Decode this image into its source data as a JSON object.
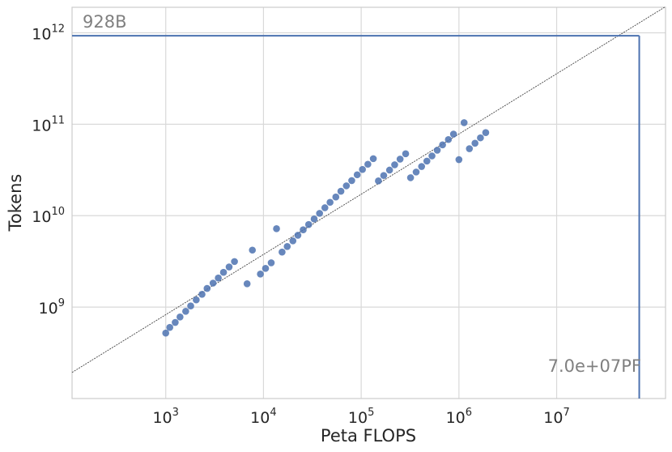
{
  "chart_data": {
    "type": "scatter",
    "xlabel": "Peta FLOPS",
    "ylabel": "Tokens",
    "xscale": "log",
    "yscale": "log",
    "xlim": [
      110,
      130000000.0
    ],
    "ylim": [
      100000000.0,
      1900000000000.0
    ],
    "grid": true,
    "x_ticks": [
      {
        "base": "10",
        "exp": "3",
        "value": 1000
      },
      {
        "base": "10",
        "exp": "4",
        "value": 10000
      },
      {
        "base": "10",
        "exp": "5",
        "value": 100000
      },
      {
        "base": "10",
        "exp": "6",
        "value": 1000000
      },
      {
        "base": "10",
        "exp": "7",
        "value": 10000000
      }
    ],
    "y_ticks": [
      {
        "base": "10",
        "exp": "9",
        "value": 1000000000
      },
      {
        "base": "10",
        "exp": "10",
        "value": 10000000000
      },
      {
        "base": "10",
        "exp": "11",
        "value": 100000000000
      },
      {
        "base": "10",
        "exp": "12",
        "value": 1000000000000
      }
    ],
    "point_color": "#4c72b0",
    "line_color": "#4c72b0",
    "points": [
      [
        1000,
        520000000.0
      ],
      [
        1100,
        600000000.0
      ],
      [
        1250,
        680000000.0
      ],
      [
        1400,
        780000000.0
      ],
      [
        1600,
        900000000.0
      ],
      [
        1800,
        1030000000.0
      ],
      [
        2050,
        1200000000.0
      ],
      [
        2350,
        1380000000.0
      ],
      [
        2650,
        1600000000.0
      ],
      [
        3050,
        1830000000.0
      ],
      [
        3450,
        2080000000.0
      ],
      [
        3900,
        2400000000.0
      ],
      [
        4450,
        2750000000.0
      ],
      [
        5050,
        3150000000.0
      ],
      [
        6800,
        1800000000.0
      ],
      [
        7700,
        4200000000.0
      ],
      [
        9300,
        2300000000.0
      ],
      [
        10500,
        2650000000.0
      ],
      [
        12000,
        3050000000.0
      ],
      [
        13600,
        7200000000.0
      ],
      [
        15500,
        4000000000.0
      ],
      [
        17500,
        4600000000.0
      ],
      [
        20000,
        5300000000.0
      ],
      [
        22500,
        6100000000.0
      ],
      [
        25500,
        7000000000.0
      ],
      [
        29000,
        8000000000.0
      ],
      [
        33000,
        9200000000.0
      ],
      [
        37500,
        10600000000.0
      ],
      [
        42500,
        12200000000.0
      ],
      [
        48000,
        14000000000.0
      ],
      [
        55000,
        16000000000.0
      ],
      [
        62000,
        18500000000.0
      ],
      [
        70500,
        21200000000.0
      ],
      [
        80000,
        24200000000.0
      ],
      [
        91000,
        28000000000.0
      ],
      [
        103000,
        32000000000.0
      ],
      [
        117000,
        36500000000.0
      ],
      [
        133000,
        42000000000.0
      ],
      [
        150000,
        24000000000.0
      ],
      [
        170000,
        27500000000.0
      ],
      [
        195000,
        31500000000.0
      ],
      [
        220000,
        36000000000.0
      ],
      [
        250000,
        41500000000.0
      ],
      [
        285000,
        47500000000.0
      ],
      [
        320000,
        26000000000.0
      ],
      [
        365000,
        30000000000.0
      ],
      [
        415000,
        34500000000.0
      ],
      [
        470000,
        39500000000.0
      ],
      [
        530000,
        45000000000.0
      ],
      [
        600000,
        52000000000.0
      ],
      [
        680000,
        59500000000.0
      ],
      [
        780000,
        68000000000.0
      ],
      [
        880000,
        78000000000.0
      ],
      [
        1000000,
        41000000000.0
      ],
      [
        1130000,
        104000000000.0
      ],
      [
        1280000,
        54000000000.0
      ],
      [
        1460000,
        62000000000.0
      ],
      [
        1660000,
        71000000000.0
      ],
      [
        1880000,
        81000000000.0
      ]
    ],
    "fit_line": {
      "x": [
        110,
        130000000.0
      ],
      "y": [
        193000000.0,
        1930000000000.0
      ]
    },
    "marker": {
      "x": 70000000.0,
      "y": 928000000000.0
    },
    "annotations": {
      "top_left": "928B",
      "bottom_right": "7.0e+07PF"
    }
  }
}
